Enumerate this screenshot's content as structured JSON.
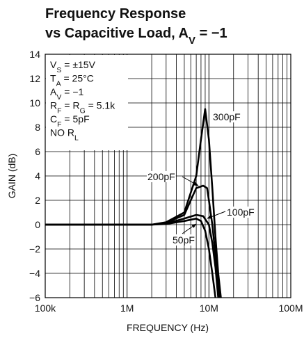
{
  "chart_data": {
    "type": "line",
    "title": [
      [
        "Frequency Response"
      ],
      [
        "vs Capacitive Load, A",
        "V",
        " = −1"
      ]
    ],
    "notes": [
      [
        "V",
        "S",
        " = ±15V"
      ],
      [
        "T",
        "A",
        " = 25°C"
      ],
      [
        "A",
        "V",
        " = −1"
      ],
      [
        "R",
        "F",
        " = R",
        "G",
        " = 5.1k"
      ],
      [
        "C",
        "F",
        " = 5pF"
      ],
      [
        "NO R",
        "L"
      ]
    ],
    "xlabel": "FREQUENCY (Hz)",
    "ylabel": "GAIN (dB)",
    "xscale": "log",
    "grid": true,
    "xlim": [
      100000,
      100000000
    ],
    "ylim": [
      -6,
      14
    ],
    "xticks": [
      {
        "value": 100000,
        "label": "100k"
      },
      {
        "value": 1000000,
        "label": "1M"
      },
      {
        "value": 10000000,
        "label": "10M"
      },
      {
        "value": 100000000,
        "label": "100M"
      }
    ],
    "xminorticks": [
      200000,
      300000,
      400000,
      500000,
      600000,
      700000,
      800000,
      900000,
      2000000,
      3000000,
      4000000,
      5000000,
      6000000,
      7000000,
      8000000,
      9000000,
      20000000,
      30000000,
      40000000,
      50000000,
      60000000,
      70000000,
      80000000,
      90000000
    ],
    "yticks": [
      {
        "value": -6,
        "label": "−6"
      },
      {
        "value": -4,
        "label": "−4"
      },
      {
        "value": -2,
        "label": "−2"
      },
      0,
      2,
      4,
      6,
      8,
      10,
      12,
      14
    ],
    "series": [
      {
        "name": "50pF",
        "color": "#000000",
        "x": [
          100000,
          1000000,
          2000000,
          3000000,
          5000000,
          7000000,
          8000000,
          9000000,
          10000000,
          11000000,
          12000000
        ],
        "values": [
          0,
          0,
          0,
          0.05,
          0.3,
          0.5,
          0.3,
          -0.5,
          -2,
          -4,
          -6
        ]
      },
      {
        "name": "100pF",
        "color": "#000000",
        "x": [
          100000,
          1000000,
          2000000,
          3000000,
          5000000,
          7000000,
          8500000,
          10000000,
          11000000,
          12000000,
          13000000
        ],
        "values": [
          0,
          0,
          0,
          0.1,
          0.5,
          0.8,
          0.7,
          0,
          -1.5,
          -3.5,
          -6
        ]
      },
      {
        "name": "200pF",
        "color": "#000000",
        "x": [
          100000,
          1000000,
          2000000,
          3000000,
          5000000,
          6000000,
          7000000,
          8500000,
          9500000,
          10000000,
          11000000,
          12000000,
          13000000,
          13500000
        ],
        "values": [
          0,
          0,
          0,
          0.15,
          0.8,
          2,
          3,
          3.2,
          3,
          2,
          0,
          -2.5,
          -5,
          -6
        ]
      },
      {
        "name": "300pF",
        "color": "#000000",
        "x": [
          100000,
          1000000,
          2000000,
          3000000,
          5000000,
          7000000,
          8000000,
          9000000,
          10000000,
          11000000,
          12000000,
          13000000,
          14000000
        ],
        "values": [
          0,
          0,
          0,
          0.2,
          1,
          4,
          7,
          9.5,
          7,
          3,
          -1,
          -4,
          -6
        ]
      }
    ]
  }
}
